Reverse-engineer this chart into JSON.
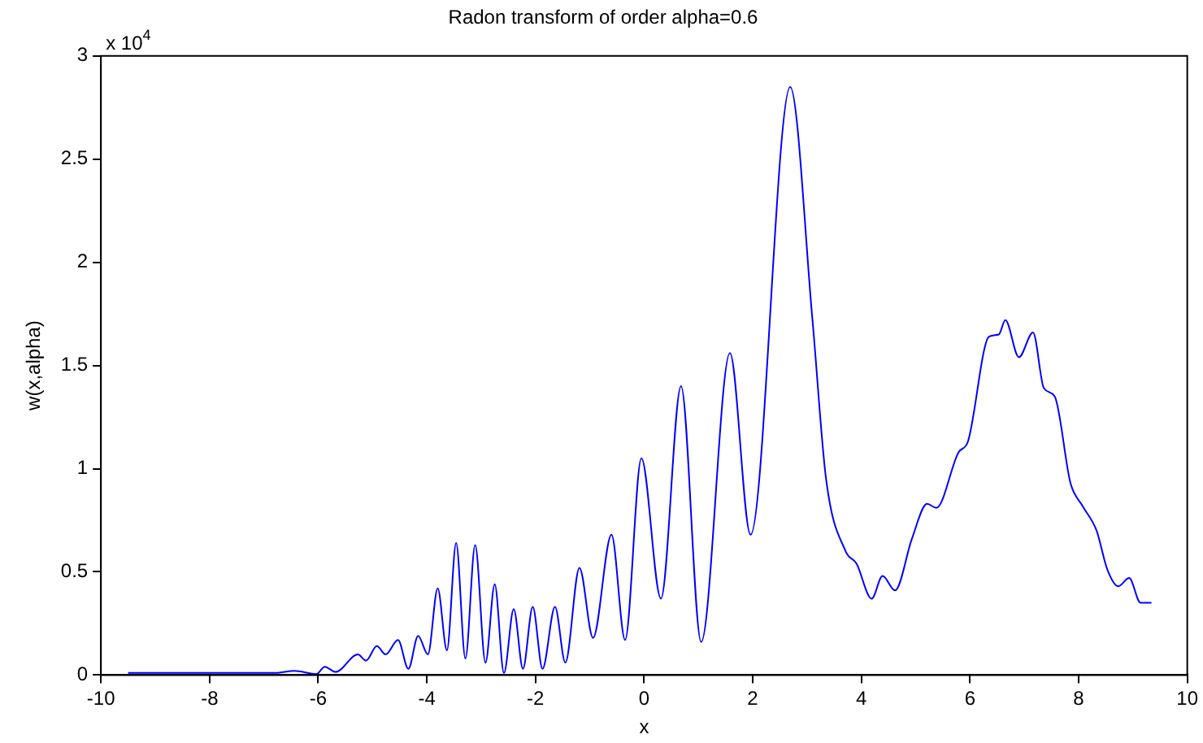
{
  "chart_data": {
    "type": "line",
    "title": "Radon transform of order alpha=0.6",
    "xlabel": "x",
    "ylabel": "w(x,alpha)",
    "annotations": [
      "x 10$^{4}$"
    ],
    "xlim": [
      -10,
      10
    ],
    "xticks": [
      -10,
      -8,
      -6,
      -4,
      -2,
      0,
      2,
      4,
      6,
      8,
      10
    ],
    "ylim": [
      0,
      3
    ],
    "yticks": [
      0,
      0.5,
      1,
      1.5,
      2,
      2.5,
      3
    ],
    "grid": false,
    "legend": false,
    "marker": "none",
    "line_style": "solid",
    "series": [
      {
        "color": "#0000ff",
        "x": [
          -9.5,
          -9.33,
          -8,
          -6.79,
          -6.44,
          -6.03,
          -5.88,
          -5.68,
          -5.27,
          -5.12,
          -4.92,
          -4.76,
          -4.53,
          -4.34,
          -4.16,
          -3.98,
          -3.8,
          -3.63,
          -3.46,
          -3.29,
          -3.11,
          -2.92,
          -2.75,
          -2.58,
          -2.4,
          -2.23,
          -2.05,
          -1.87,
          -1.64,
          -1.45,
          -1.19,
          -0.94,
          -0.6,
          -0.35,
          -0.05,
          0.31,
          0.68,
          1.05,
          1.58,
          1.96,
          2.69,
          3.1,
          3.35,
          3.71,
          3.91,
          4.19,
          4.39,
          4.62,
          4.93,
          5.21,
          5.38,
          5.79,
          5.96,
          6.35,
          6.53,
          6.65,
          6.9,
          7.16,
          7.36,
          7.56,
          7.85,
          8.07,
          8.33,
          8.53,
          8.73,
          8.93,
          9.14,
          9.34
        ],
        "values": [
          0.01,
          0.01,
          0.01,
          0.01,
          0.02,
          0.005,
          0.04,
          0.015,
          0.1,
          0.07,
          0.14,
          0.1,
          0.17,
          0.03,
          0.19,
          0.1,
          0.42,
          0.12,
          0.64,
          0.08,
          0.63,
          0.06,
          0.44,
          0.01,
          0.32,
          0.03,
          0.33,
          0.03,
          0.33,
          0.06,
          0.52,
          0.18,
          0.68,
          0.17,
          1.05,
          0.37,
          1.4,
          0.16,
          1.56,
          0.68,
          2.85,
          1.72,
          0.95,
          0.6,
          0.54,
          0.37,
          0.48,
          0.41,
          0.66,
          0.83,
          0.81,
          1.08,
          1.13,
          1.64,
          1.65,
          1.72,
          1.54,
          1.66,
          1.39,
          1.35,
          0.93,
          0.82,
          0.7,
          0.51,
          0.43,
          0.47,
          0.35,
          0.35
        ]
      }
    ]
  }
}
